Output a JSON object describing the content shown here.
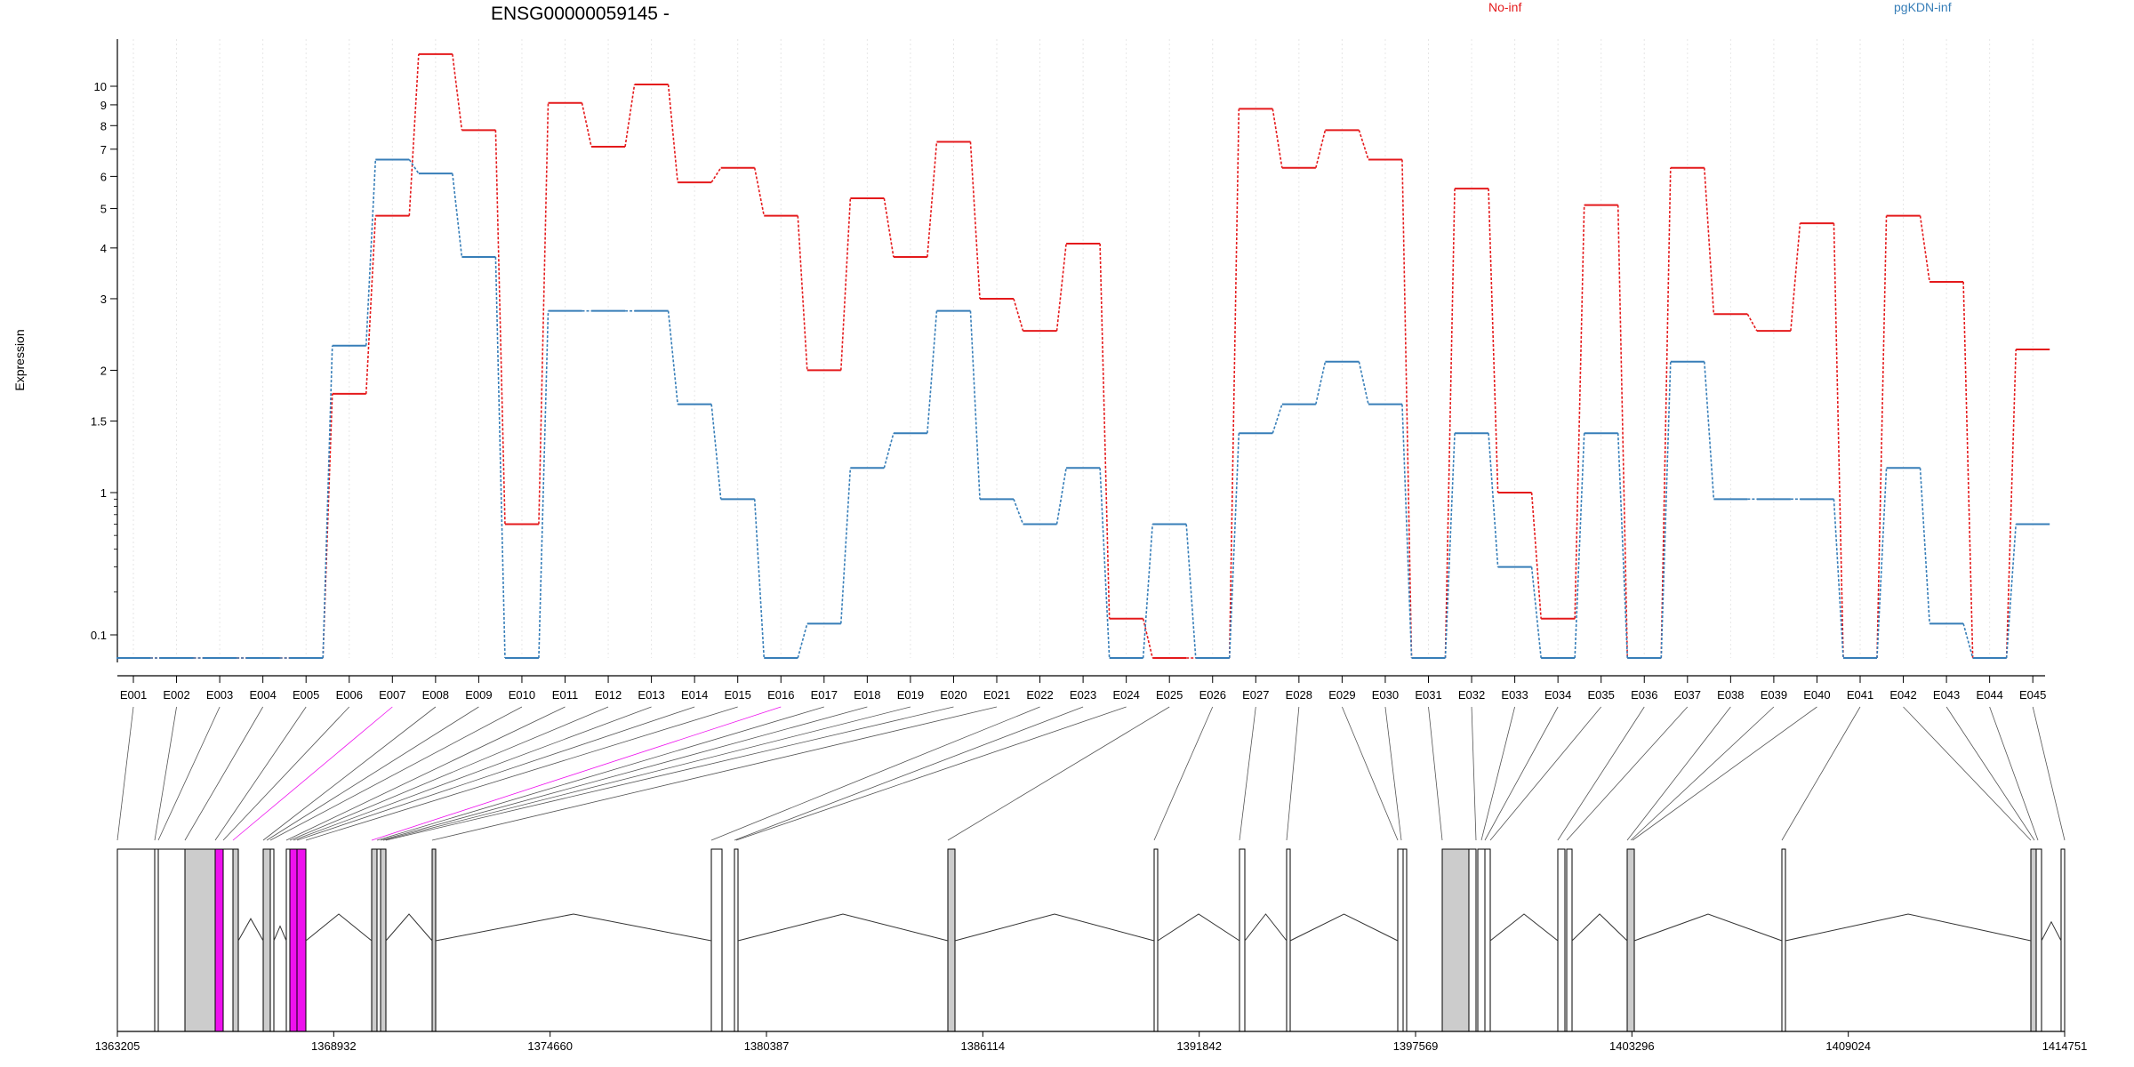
{
  "title": "ENSG00000059145 -",
  "colors": {
    "no_inf": "#e41a1c",
    "pgkdn_inf": "#377eb8",
    "highlight": "#ee11ee",
    "exon_gray": "#cccccc",
    "grid": "#e6e6e6"
  },
  "chart_data": {
    "type": "line",
    "title": "ENSG00000059145 -",
    "xlabel": "",
    "ylabel": "Expression",
    "y_scale": "log",
    "ylim": [
      0.07,
      15
    ],
    "y_ticks": [
      0.1,
      1,
      1.5,
      2,
      3,
      4,
      5,
      6,
      7,
      8,
      9,
      10
    ],
    "y_tick_labels": [
      "0.1",
      "1",
      "1.5",
      "2",
      "3",
      "4",
      "5",
      "6",
      "7",
      "8",
      "9",
      "10"
    ],
    "legend_placement": "top",
    "categories": [
      "E001",
      "E002",
      "E003",
      "E004",
      "E005",
      "E006",
      "E007",
      "E008",
      "E009",
      "E010",
      "E011",
      "E012",
      "E013",
      "E014",
      "E015",
      "E016",
      "E017",
      "E018",
      "E019",
      "E020",
      "E021",
      "E022",
      "E023",
      "E024",
      "E025",
      "E026",
      "E027",
      "E028",
      "E029",
      "E030",
      "E031",
      "E032",
      "E033",
      "E034",
      "E035",
      "E036",
      "E037",
      "E038",
      "E039",
      "E040",
      "E041",
      "E042",
      "E043",
      "E044",
      "E045"
    ],
    "highlighted_exons": [
      "E007",
      "E016"
    ],
    "series": [
      {
        "name": "No-inf",
        "values": [
          0.07,
          0.07,
          0.07,
          0.07,
          0.07,
          1.75,
          4.8,
          12.0,
          7.8,
          0.6,
          9.1,
          7.1,
          10.1,
          5.8,
          6.3,
          4.8,
          2.0,
          5.3,
          3.8,
          7.3,
          3.0,
          2.5,
          4.1,
          0.13,
          0.07,
          0.07,
          8.8,
          6.3,
          7.8,
          6.6,
          0.07,
          5.6,
          1.0,
          0.13,
          5.1,
          0.07,
          6.3,
          2.75,
          2.5,
          4.6,
          0.07,
          4.8,
          3.3,
          0.07,
          2.25
        ]
      },
      {
        "name": "pgKDN-inf",
        "values": [
          0.07,
          0.07,
          0.07,
          0.07,
          0.07,
          2.3,
          6.6,
          6.1,
          3.8,
          0.07,
          2.8,
          2.8,
          2.8,
          1.65,
          0.9,
          0.07,
          0.12,
          1.15,
          1.4,
          2.8,
          0.9,
          0.6,
          1.15,
          0.07,
          0.6,
          0.07,
          1.4,
          1.65,
          2.1,
          1.65,
          0.07,
          1.4,
          0.3,
          0.07,
          1.4,
          0.07,
          2.1,
          0.9,
          0.9,
          0.9,
          0.07,
          1.15,
          0.12,
          0.07,
          0.6
        ]
      }
    ],
    "genomic_coordinate_labels": [
      "1363205",
      "1368932",
      "1374660",
      "1380387",
      "1386114",
      "1391842",
      "1397569",
      "1403296",
      "1409024",
      "1414751"
    ],
    "gene_range": [
      1363205,
      1414751
    ]
  }
}
